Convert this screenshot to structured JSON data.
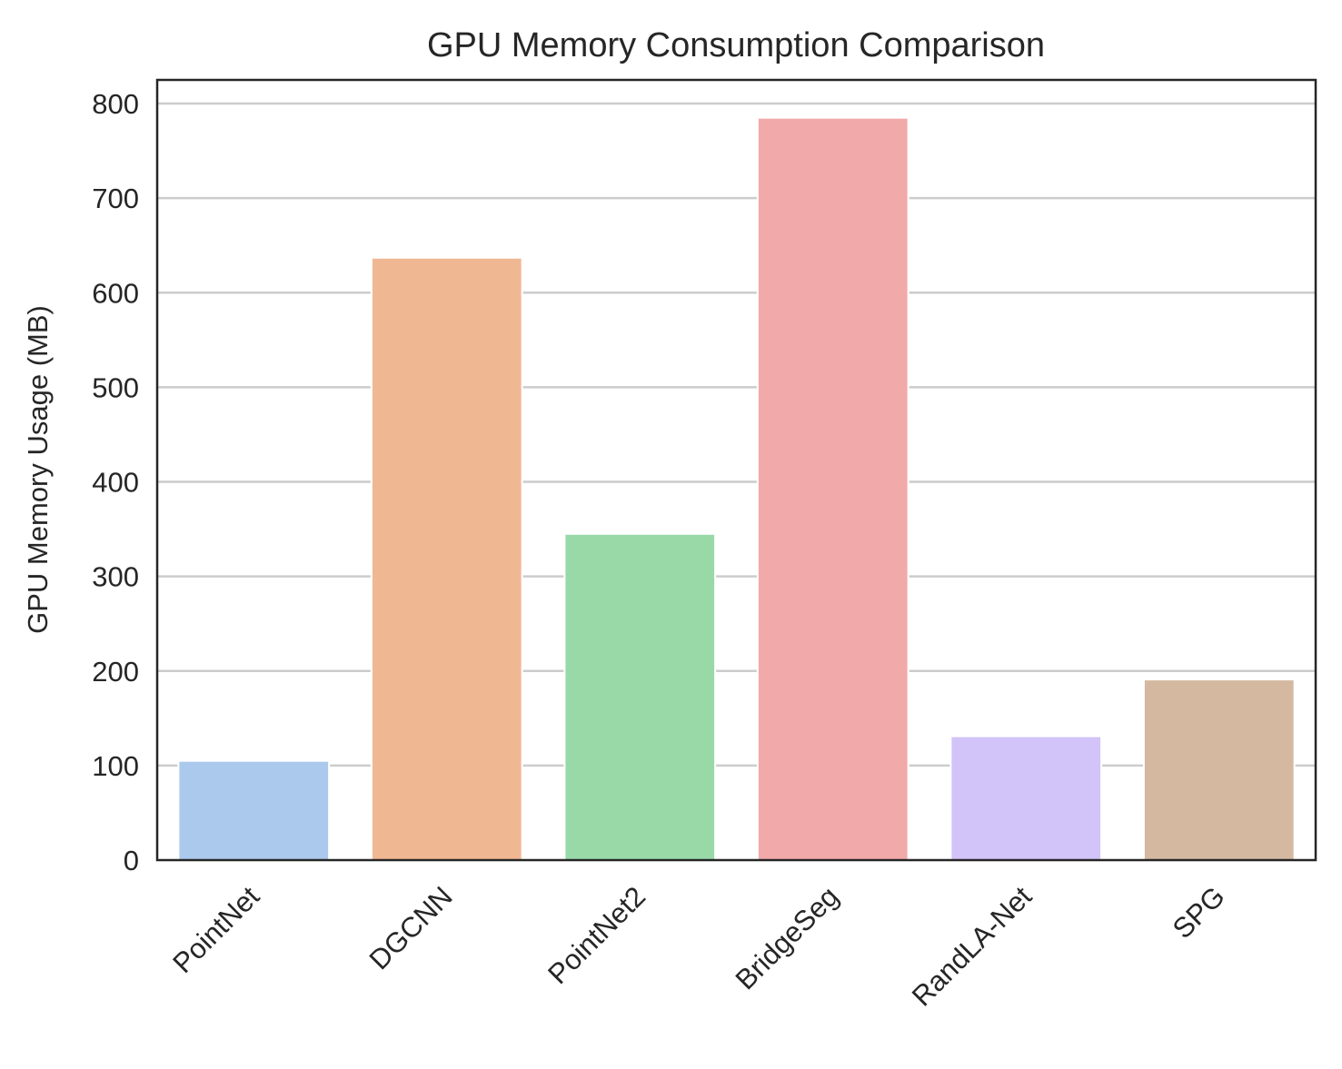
{
  "chart_data": {
    "type": "bar",
    "title": "GPU Memory Consumption Comparison",
    "xlabel": "",
    "ylabel": "GPU Memory Usage (MB)",
    "categories": [
      "PointNet",
      "DGCNN",
      "PointNet2",
      "BridgeSeg",
      "RandLA-Net",
      "SPG"
    ],
    "values": [
      105,
      637,
      345,
      785,
      131,
      191
    ],
    "colors": [
      "#abc9ed",
      "#f0b793",
      "#99d9a8",
      "#f1aaa9",
      "#d2c4f8",
      "#d4b9a0"
    ],
    "ylim": [
      0,
      825
    ],
    "yticks": [
      0,
      100,
      200,
      300,
      400,
      500,
      600,
      700,
      800
    ],
    "grid": "horizontal",
    "legend": "none"
  }
}
